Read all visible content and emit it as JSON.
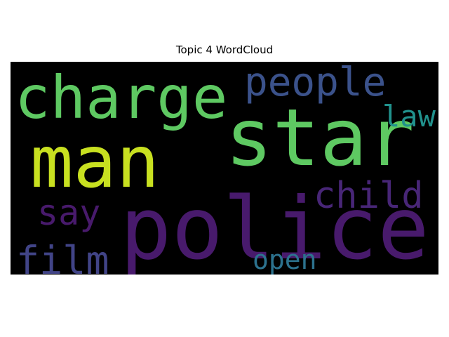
{
  "chart_data": {
    "type": "wordcloud",
    "title": "Topic 4 WordCloud",
    "background": "#000000",
    "words": [
      {
        "text": "police",
        "weight": 1.0,
        "color": "#481a6c"
      },
      {
        "text": "star",
        "weight": 0.88,
        "color": "#5ec962"
      },
      {
        "text": "man",
        "weight": 0.8,
        "color": "#c8e020"
      },
      {
        "text": "charge",
        "weight": 0.66,
        "color": "#5ec962"
      },
      {
        "text": "people",
        "weight": 0.46,
        "color": "#3b528b"
      },
      {
        "text": "child",
        "weight": 0.42,
        "color": "#482677"
      },
      {
        "text": "film",
        "weight": 0.4,
        "color": "#414487"
      },
      {
        "text": "say",
        "weight": 0.38,
        "color": "#481a6c"
      },
      {
        "text": "law",
        "weight": 0.3,
        "color": "#21918c"
      },
      {
        "text": "open",
        "weight": 0.28,
        "color": "#2c728e"
      }
    ]
  }
}
